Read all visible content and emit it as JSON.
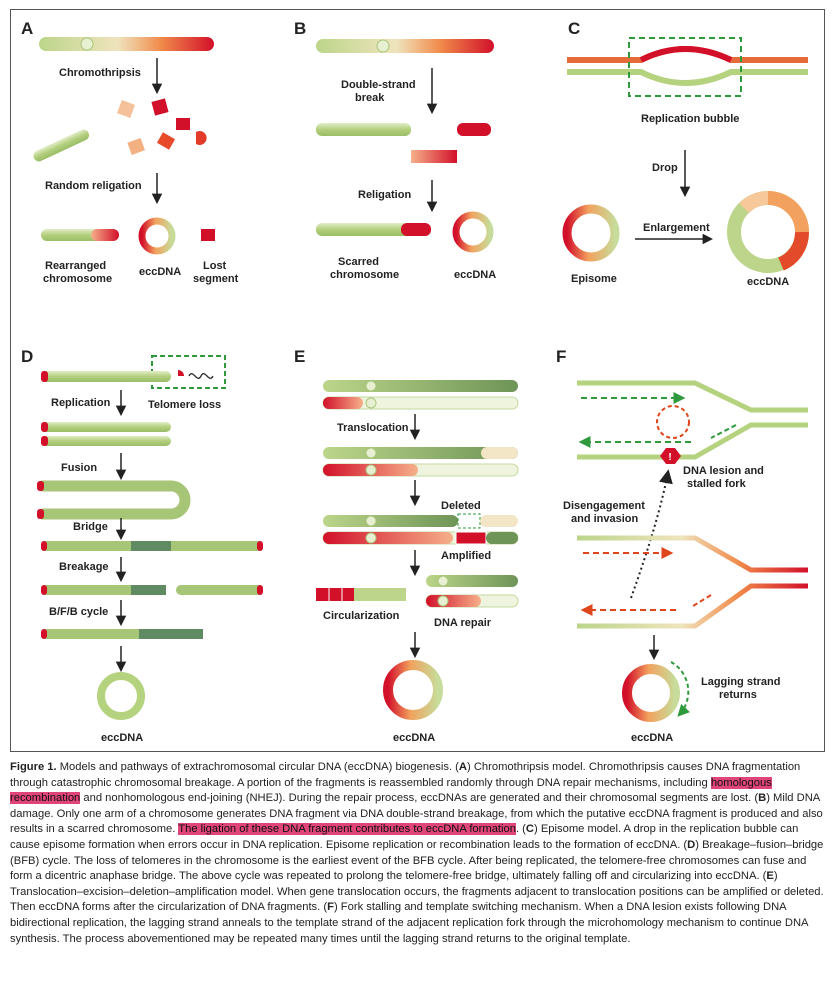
{
  "panels": {
    "A": {
      "letter": "A",
      "chromothripsis": "Chromothripsis",
      "random_religation": "Random religation",
      "rearranged_1": "Rearranged",
      "rearranged_2": "chromosome",
      "eccdna": "eccDNA",
      "lost_1": "Lost",
      "lost_2": "segment"
    },
    "B": {
      "letter": "B",
      "dsb_1": "Double-strand",
      "dsb_2": "break",
      "religation": "Religation",
      "scarred_1": "Scarred",
      "scarred_2": "chromosome",
      "eccdna": "eccDNA"
    },
    "C": {
      "letter": "C",
      "bubble": "Replication bubble",
      "drop": "Drop",
      "enlargement": "Enlargement",
      "episome": "Episome",
      "eccdna": "eccDNA"
    },
    "D": {
      "letter": "D",
      "telomere_loss": "Telomere loss",
      "replication": "Replication",
      "fusion": "Fusion",
      "bridge": "Bridge",
      "breakage": "Breakage",
      "bfb": "B/F/B cycle",
      "eccdna": "eccDNA"
    },
    "E": {
      "letter": "E",
      "translocation": "Translocation",
      "deleted": "Deleted",
      "amplified": "Amplified",
      "circularization": "Circularization",
      "dna_repair": "DNA repair",
      "eccdna": "eccDNA"
    },
    "F": {
      "letter": "F",
      "lesion_1": "DNA lesion and",
      "lesion_2": "stalled fork",
      "diseng_1": "Disengagement",
      "diseng_2": "and invasion",
      "lagging_1": "Lagging strand",
      "lagging_2": "returns",
      "eccdna": "eccDNA"
    }
  },
  "caption": {
    "fig_label": "Figure 1.",
    "t1": " Models and pathways of extrachromosomal circular DNA (eccDNA) biogenesis. (",
    "a": "A",
    "t2": ") Chromothripsis model. Chromothripsis causes DNA fragmentation through catastrophic chromosomal breakage. A portion of the fragments is reassembled randomly through DNA repair mechanisms, including ",
    "hl1": "homologous recombination",
    "t3": " and nonhomologous end-joining (NHEJ). During the repair process, eccDNAs are generated and their chromosomal segments are lost. (",
    "b": "B",
    "t4": ") Mild DNA damage. Only one arm of a chromosome generates DNA fragment via DNA double-strand breakage, from which the putative eccDNA fragment is produced and also results in a scarred chromosome. ",
    "hl2": "The ligation of these DNA fragment contributes to eccDNA formation",
    "t5": ". (",
    "c": "C",
    "t6": ") Episome model. A drop in the replication bubble can cause episome formation when errors occur in DNA replication. Episome replication or recombination leads to the formation of eccDNA. (",
    "d": "D",
    "t7": ") Breakage–fusion–bridge (BFB) cycle. The loss of telomeres in the chromosome is the earliest event of the BFB cycle. After being replicated, the telomere-free chromosomes can fuse and form a dicentric anaphase bridge. The above cycle was repeated to prolong the telomere-free bridge, ultimately falling off and circularizing into eccDNA. (",
    "e": "E",
    "t8": ") Translocation–excision–deletion–amplification model. When gene translocation occurs, the fragments adjacent to translocation positions can be amplified or deleted. Then eccDNA forms after the circularization of DNA fragments. (",
    "f": "F",
    "t9": ") Fork stalling and template switching mechanism. When a DNA lesion exists following DNA bidirectional replication, the lagging strand anneals to the template strand of the adjacent replication fork through the microhomology mechanism to continue DNA synthesis. The process abovementioned may be repeated many times until the lagging strand returns to the original template."
  },
  "colors": {
    "green": "#b5d27f",
    "red": "#d2102a",
    "highlight": "#e0457a"
  }
}
